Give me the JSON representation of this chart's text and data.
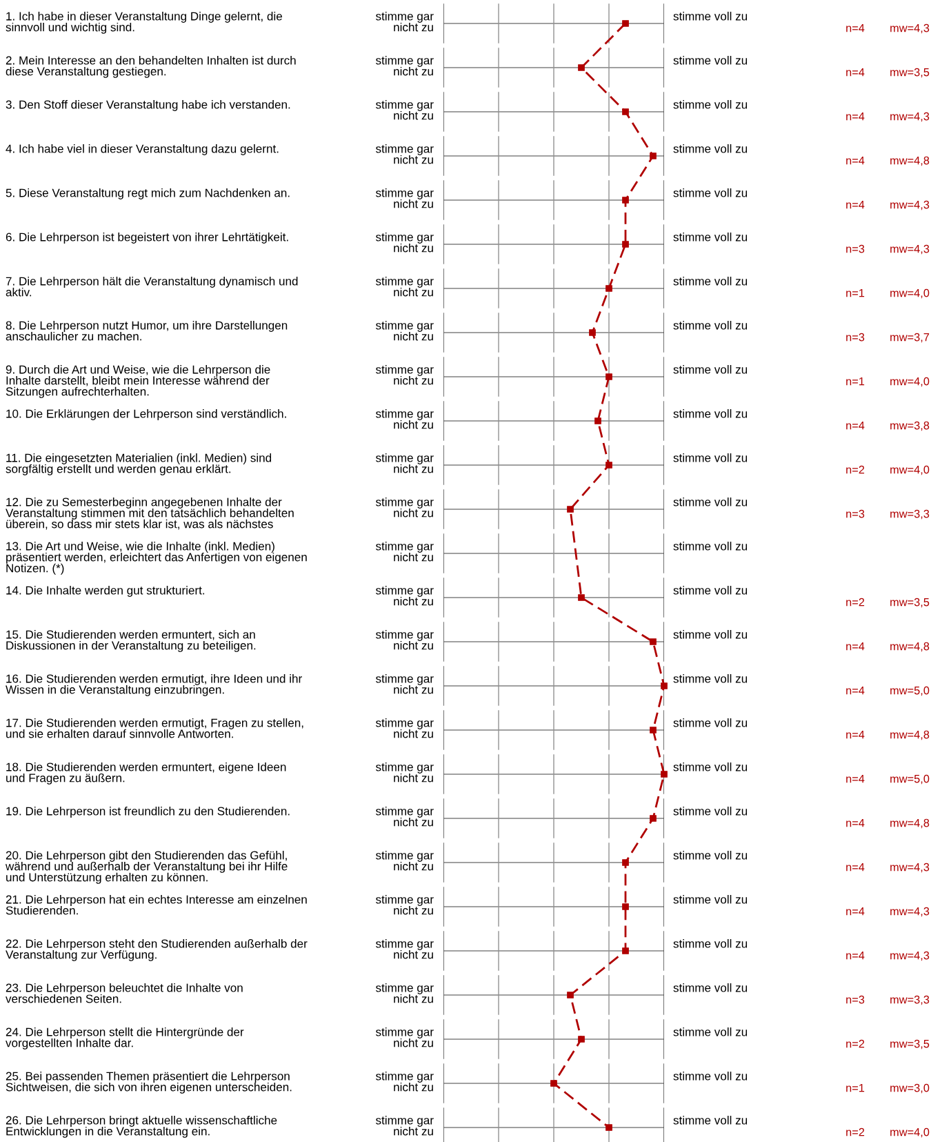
{
  "chart_data": {
    "type": "line",
    "orientation": "horizontal",
    "categories": [
      "1. Ich habe in dieser Veranstaltung Dinge gelernt, die\nsinnvoll und wichtig sind.",
      "2. Mein Interesse an den behandelten Inhalten ist durch\ndiese Veranstaltung gestiegen.",
      "3. Den Stoff dieser Veranstaltung habe ich verstanden.",
      "4. Ich habe viel in dieser Veranstaltung dazu gelernt.",
      "5. Diese Veranstaltung regt mich zum Nachdenken an.",
      "6. Die Lehrperson ist begeistert von ihrer Lehrtätigkeit.",
      "7. Die Lehrperson hält die Veranstaltung dynamisch und\naktiv.",
      "8. Die Lehrperson nutzt Humor, um ihre Darstellungen\nanschaulicher zu machen.",
      "9. Durch die Art und Weise, wie die Lehrperson die\nInhalte darstellt, bleibt mein Interesse während der\nSitzungen aufrechterhalten.",
      "10. Die Erklärungen der Lehrperson sind verständlich.",
      "11. Die eingesetzten Materialien (inkl. Medien) sind\nsorgfältig erstellt und werden genau erklärt.",
      "12. Die zu Semesterbeginn angegebenen Inhalte der\nVeranstaltung stimmen mit den tatsächlich behandelten\nüberein, so dass mir stets klar ist, was als nächstes",
      "13. Die Art und Weise, wie die Inhalte (inkl. Medien)\npräsentiert werden, erleichtert das Anfertigen von eigenen\nNotizen. (*)",
      "14. Die Inhalte werden gut strukturiert.",
      "15. Die Studierenden werden ermuntert, sich an\nDiskussionen in der Veranstaltung zu beteiligen.",
      "16. Die Studierenden werden ermutigt, ihre Ideen und ihr\nWissen in die Veranstaltung einzubringen.",
      "17. Die Studierenden werden ermutigt, Fragen zu stellen,\nund sie erhalten darauf sinnvolle Antworten.",
      "18. Die Studierenden werden ermuntert, eigene Ideen\nund Fragen zu äußern.",
      "19. Die Lehrperson ist freundlich zu den Studierenden.",
      "20. Die Lehrperson gibt den Studierenden das Gefühl,\nwährend und außerhalb der Veranstaltung bei ihr Hilfe\nund Unterstützung erhalten zu können.",
      "21. Die Lehrperson hat ein echtes Interesse am einzelnen\nStudierenden.",
      "22. Die Lehrperson steht den Studierenden außerhalb der\nVeranstaltung zur Verfügung.",
      "23. Die Lehrperson beleuchtet die Inhalte von\nverschiedenen Seiten.",
      "24. Die Lehrperson stellt die Hintergründe der\nvorgestellten Inhalte dar.",
      "25. Bei passenden Themen präsentiert die Lehrperson\nSichtweisen, die sich von ihren eigenen unterscheiden.",
      "26. Die Lehrperson bringt aktuelle wissenschaftliche\nEntwicklungen in die Veranstaltung ein."
    ],
    "series": [
      {
        "color": "#b00000",
        "values": [
          4.3,
          3.5,
          4.3,
          4.8,
          4.3,
          4.3,
          4.0,
          3.7,
          4.0,
          3.8,
          4.0,
          3.3,
          null,
          3.5,
          4.8,
          5.0,
          4.8,
          5.0,
          4.8,
          4.3,
          4.3,
          4.3,
          3.3,
          3.5,
          3.0,
          4.0
        ],
        "value_labels": [
          "mw=4,3",
          "mw=3,5",
          "mw=4,3",
          "mw=4,8",
          "mw=4,3",
          "mw=4,3",
          "mw=4,0",
          "mw=3,7",
          "mw=4,0",
          "mw=3,8",
          "mw=4,0",
          "mw=3,3",
          null,
          "mw=3,5",
          "mw=4,8",
          "mw=5,0",
          "mw=4,8",
          "mw=5,0",
          "mw=4,8",
          "mw=4,3",
          "mw=4,3",
          "mw=4,3",
          "mw=3,3",
          "mw=3,5",
          "mw=3,0",
          "mw=4,0"
        ]
      }
    ],
    "annotations": [
      "stimme gar\nnicht zu",
      "stimme voll zu",
      "n=4",
      "n=4",
      "n=4",
      "n=4",
      "n=4",
      "n=3",
      "n=1",
      "n=3",
      "n=1",
      "n=4",
      "n=2",
      "n=3",
      "n=2",
      "n=4",
      "n=4",
      "n=4",
      "n=4",
      "n=4",
      "n=4",
      "n=4",
      "n=4",
      "n=3",
      "n=2",
      "n=1",
      "n=2"
    ],
    "xlim": [
      1,
      5
    ],
    "tick_labels": false,
    "grid": "y",
    "marker": "square",
    "line_style": "dashed"
  }
}
